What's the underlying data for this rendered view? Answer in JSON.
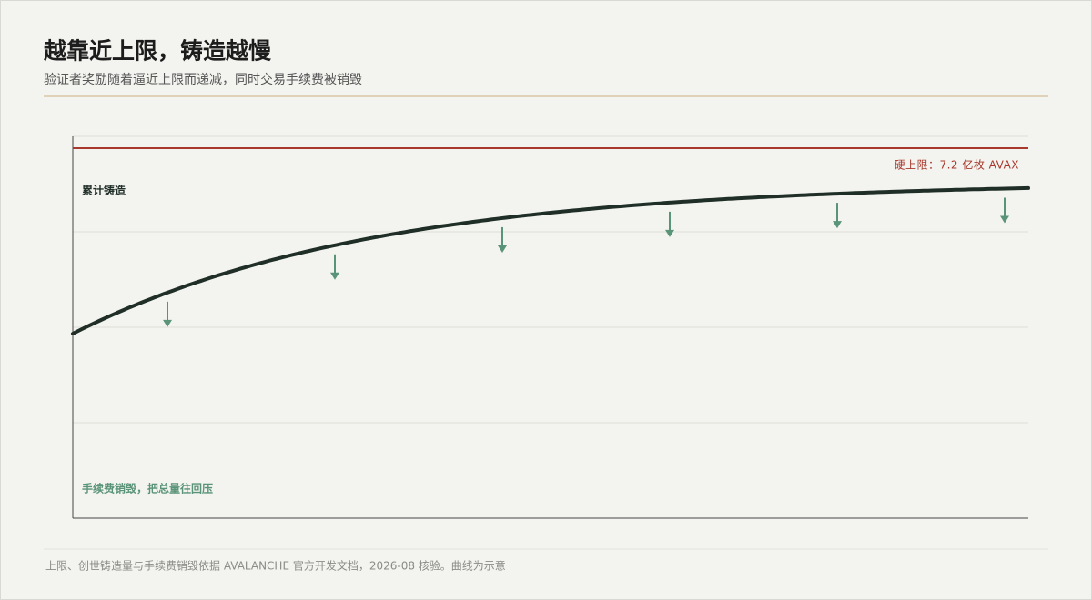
{
  "header": {
    "title": "越靠近上限，铸造越慢",
    "subtitle": "验证者奖励随着逼近上限而递减，同时交易手续费被销毁"
  },
  "diagram": {
    "cap_label": "硬上限：7.2 亿枚 AVAX",
    "curve_label": "累计铸造",
    "burn_label": "手续费销毁，把总量往回压"
  },
  "footer": {
    "note": "上限、创世铸造量与手续费销毁依据 AVALANCHE 官方开发文档，2026-08 核验。曲线为示意"
  }
}
